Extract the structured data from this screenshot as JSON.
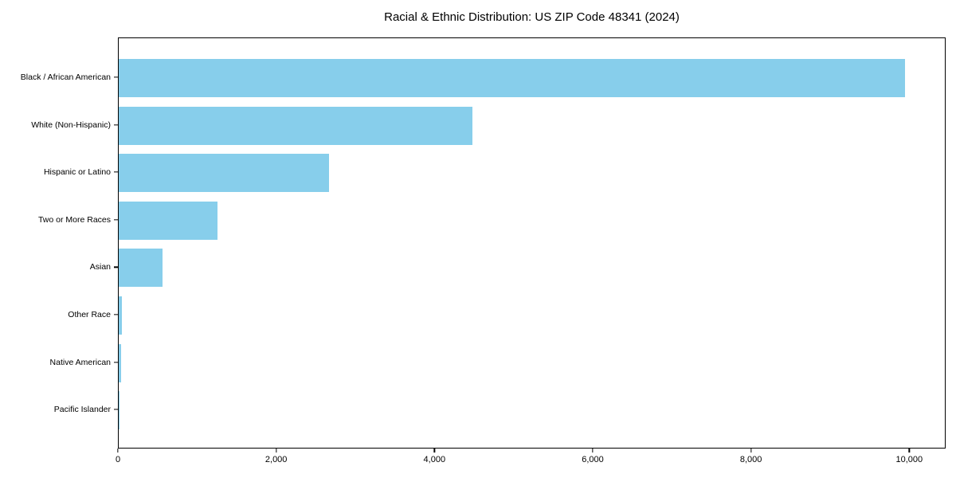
{
  "page": {
    "background": "#ffffff"
  },
  "chart_data": {
    "type": "bar",
    "orientation": "horizontal",
    "title": "Racial & Ethnic Distribution: US ZIP Code 48341 (2024)",
    "categories": [
      "Black / African American",
      "White (Non-Hispanic)",
      "Hispanic or Latino",
      "Two or More Races",
      "Asian",
      "Other Race",
      "Native American",
      "Pacific Islander"
    ],
    "values": [
      9940,
      4470,
      2660,
      1250,
      550,
      40,
      35,
      5
    ],
    "xlabel": "",
    "ylabel": "",
    "x_tick_values": [
      0,
      2000,
      4000,
      6000,
      8000,
      10000
    ],
    "x_tick_labels": [
      "0",
      "2,000",
      "4,000",
      "6,000",
      "8,000",
      "10,000"
    ],
    "xlim": [
      0,
      10460
    ],
    "bar_color": "#87CEEB",
    "axis_color": "#000000",
    "text_color": "#000000",
    "grid": false,
    "legend": null
  }
}
